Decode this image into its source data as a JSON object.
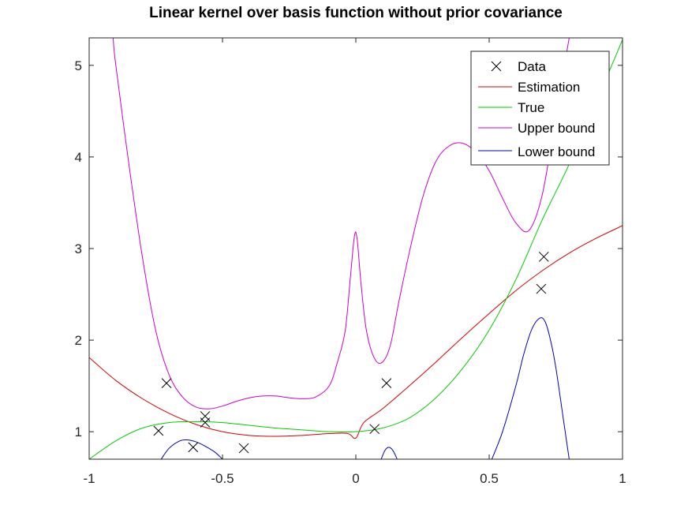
{
  "chart_data": {
    "type": "line",
    "title": "Linear kernel over basis function without prior covariance",
    "xlabel": "",
    "ylabel": "",
    "xlim": [
      -1,
      1
    ],
    "ylim": [
      0.7,
      5.3
    ],
    "grid": false,
    "legend_position": "top-right",
    "x_ticks": [
      -1,
      -0.5,
      0,
      0.5,
      1
    ],
    "x_tick_labels": [
      "-1",
      "-0.5",
      "0",
      "0.5",
      "1"
    ],
    "y_ticks": [
      1,
      2,
      3,
      4,
      5
    ],
    "y_tick_labels": [
      "1",
      "2",
      "3",
      "4",
      "5"
    ],
    "legend": [
      "Data",
      "Estimation",
      "True",
      "Upper bound",
      "Lower bound"
    ],
    "colors": {
      "data": "#000000",
      "estimation": "#d40000",
      "true": "#00cc00",
      "upper": "#cc00cc",
      "lower": "#0000bb"
    },
    "data_points": [
      {
        "x": -0.74,
        "y": 1.01
      },
      {
        "x": -0.71,
        "y": 1.53
      },
      {
        "x": -0.61,
        "y": 0.83
      },
      {
        "x": -0.565,
        "y": 1.17
      },
      {
        "x": -0.565,
        "y": 1.1
      },
      {
        "x": -0.42,
        "y": 0.82
      },
      {
        "x": 0.07,
        "y": 1.03
      },
      {
        "x": 0.115,
        "y": 1.53
      },
      {
        "x": 0.695,
        "y": 2.56
      },
      {
        "x": 0.705,
        "y": 2.91
      }
    ],
    "series": [
      {
        "name": "Estimation",
        "x": [
          -1,
          -0.9,
          -0.8,
          -0.7,
          -0.6,
          -0.5,
          -0.4,
          -0.3,
          -0.2,
          -0.1,
          -0.03,
          0.0,
          0.03,
          0.1,
          0.2,
          0.3,
          0.4,
          0.5,
          0.6,
          0.7,
          0.8,
          0.9,
          1.0
        ],
        "y": [
          1.81,
          1.56,
          1.36,
          1.2,
          1.08,
          1.0,
          0.96,
          0.95,
          0.96,
          0.98,
          0.98,
          0.93,
          1.1,
          1.25,
          1.5,
          1.76,
          2.03,
          2.29,
          2.54,
          2.76,
          2.95,
          3.11,
          3.25
        ]
      },
      {
        "name": "True",
        "x": [
          -1,
          -0.9,
          -0.8,
          -0.7,
          -0.6,
          -0.5,
          -0.4,
          -0.3,
          -0.2,
          -0.1,
          0.0,
          0.1,
          0.2,
          0.3,
          0.4,
          0.5,
          0.6,
          0.7,
          0.8,
          0.9,
          1.0
        ],
        "y": [
          0.7,
          0.9,
          1.04,
          1.1,
          1.11,
          1.1,
          1.07,
          1.04,
          1.02,
          1.0,
          1.0,
          1.04,
          1.15,
          1.37,
          1.69,
          2.11,
          2.66,
          3.32,
          3.92,
          4.59,
          5.28
        ]
      },
      {
        "name": "Upper bound",
        "x": [
          -0.91,
          -0.9,
          -0.85,
          -0.8,
          -0.75,
          -0.7,
          -0.65,
          -0.6,
          -0.55,
          -0.5,
          -0.45,
          -0.4,
          -0.35,
          -0.3,
          -0.25,
          -0.2,
          -0.15,
          -0.1,
          -0.07,
          -0.04,
          -0.02,
          -0.005,
          0.005,
          0.02,
          0.04,
          0.07,
          0.1,
          0.13,
          0.16,
          0.2,
          0.25,
          0.3,
          0.35,
          0.4,
          0.45,
          0.5,
          0.55,
          0.6,
          0.65,
          0.7,
          0.75,
          0.8
        ],
        "y": [
          5.3,
          5.0,
          3.9,
          2.9,
          2.1,
          1.62,
          1.38,
          1.27,
          1.25,
          1.28,
          1.33,
          1.37,
          1.39,
          1.39,
          1.37,
          1.36,
          1.38,
          1.5,
          1.75,
          2.1,
          2.7,
          3.14,
          3.1,
          2.6,
          2.1,
          1.8,
          1.76,
          1.95,
          2.4,
          2.95,
          3.55,
          3.95,
          4.12,
          4.15,
          4.05,
          3.85,
          3.55,
          3.28,
          3.2,
          3.6,
          4.45,
          5.3
        ]
      },
      {
        "name": "Lower bound",
        "segments": [
          {
            "x": [
              -0.73,
              -0.7,
              -0.66,
              -0.63,
              -0.6,
              -0.57,
              -0.53,
              -0.5
            ],
            "y": [
              0.7,
              0.82,
              0.9,
              0.91,
              0.89,
              0.85,
              0.78,
              0.7
            ]
          },
          {
            "x": [
              0.095,
              0.11,
              0.125,
              0.14,
              0.155
            ],
            "y": [
              0.7,
              0.8,
              0.83,
              0.79,
              0.7
            ]
          },
          {
            "x": [
              0.51,
              0.55,
              0.6,
              0.63,
              0.66,
              0.69,
              0.71,
              0.73,
              0.75,
              0.78,
              0.8
            ],
            "y": [
              0.7,
              1.0,
              1.5,
              1.85,
              2.12,
              2.24,
              2.2,
              2.0,
              1.7,
              1.1,
              0.7
            ]
          }
        ]
      }
    ]
  }
}
